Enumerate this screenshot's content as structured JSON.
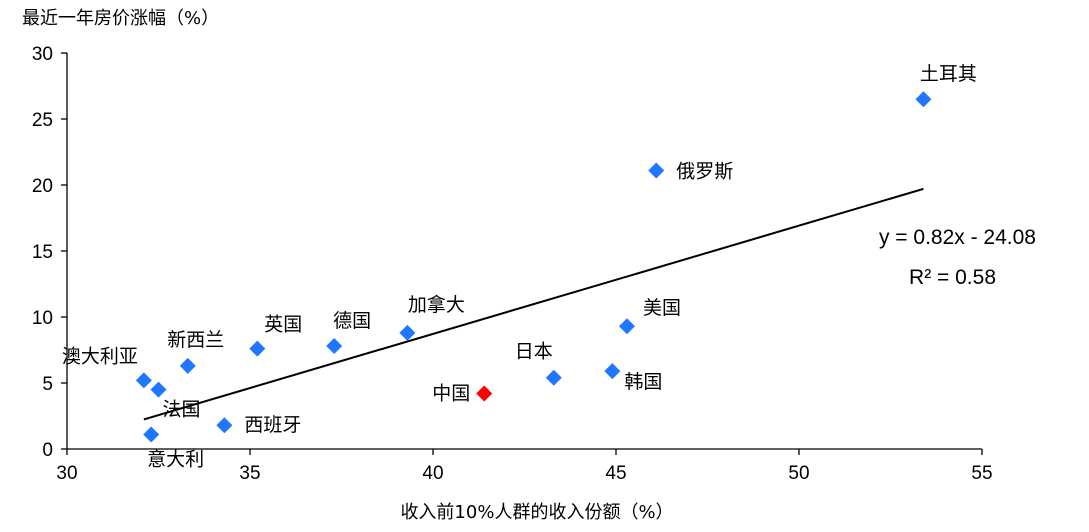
{
  "chart_data": {
    "type": "scatter",
    "ylabel": "最近一年房价涨幅（%）",
    "xlabel": "收入前10%人群的收入份额（%）",
    "xlim": [
      30,
      55
    ],
    "ylim": [
      0,
      30
    ],
    "xticks": [
      "30",
      "35",
      "40",
      "45",
      "50",
      "55"
    ],
    "yticks": [
      "0",
      "5",
      "10",
      "15",
      "20",
      "25",
      "30"
    ],
    "grid": false,
    "legend": "none",
    "points": [
      {
        "label": "澳大利亚",
        "x": 32.1,
        "y": 5.2,
        "color": "#1f77ff"
      },
      {
        "label": "法国",
        "x": 32.5,
        "y": 4.5,
        "color": "#1f77ff"
      },
      {
        "label": "意大利",
        "x": 32.3,
        "y": 1.1,
        "color": "#1f77ff"
      },
      {
        "label": "新西兰",
        "x": 33.3,
        "y": 6.3,
        "color": "#1f77ff"
      },
      {
        "label": "西班牙",
        "x": 34.3,
        "y": 1.8,
        "color": "#1f77ff"
      },
      {
        "label": "英国",
        "x": 35.2,
        "y": 7.6,
        "color": "#1f77ff"
      },
      {
        "label": "德国",
        "x": 37.3,
        "y": 7.8,
        "color": "#1f77ff"
      },
      {
        "label": "加拿大",
        "x": 39.3,
        "y": 8.8,
        "color": "#1f77ff"
      },
      {
        "label": "中国",
        "x": 41.4,
        "y": 4.2,
        "color": "#ff0000"
      },
      {
        "label": "日本",
        "x": 43.3,
        "y": 5.4,
        "color": "#1f77ff"
      },
      {
        "label": "韩国",
        "x": 44.9,
        "y": 5.9,
        "color": "#1f77ff"
      },
      {
        "label": "美国",
        "x": 45.3,
        "y": 9.3,
        "color": "#1f77ff"
      },
      {
        "label": "俄罗斯",
        "x": 46.1,
        "y": 21.1,
        "color": "#1f77ff"
      },
      {
        "label": "土耳其",
        "x": 53.4,
        "y": 26.5,
        "color": "#1f77ff"
      }
    ],
    "trendline": {
      "slope": 0.82,
      "intercept": -24.08,
      "x_start": 32.1,
      "x_end": 53.4,
      "equation": "y = 0.82x - 24.08",
      "r2": "R² = 0.58"
    }
  }
}
